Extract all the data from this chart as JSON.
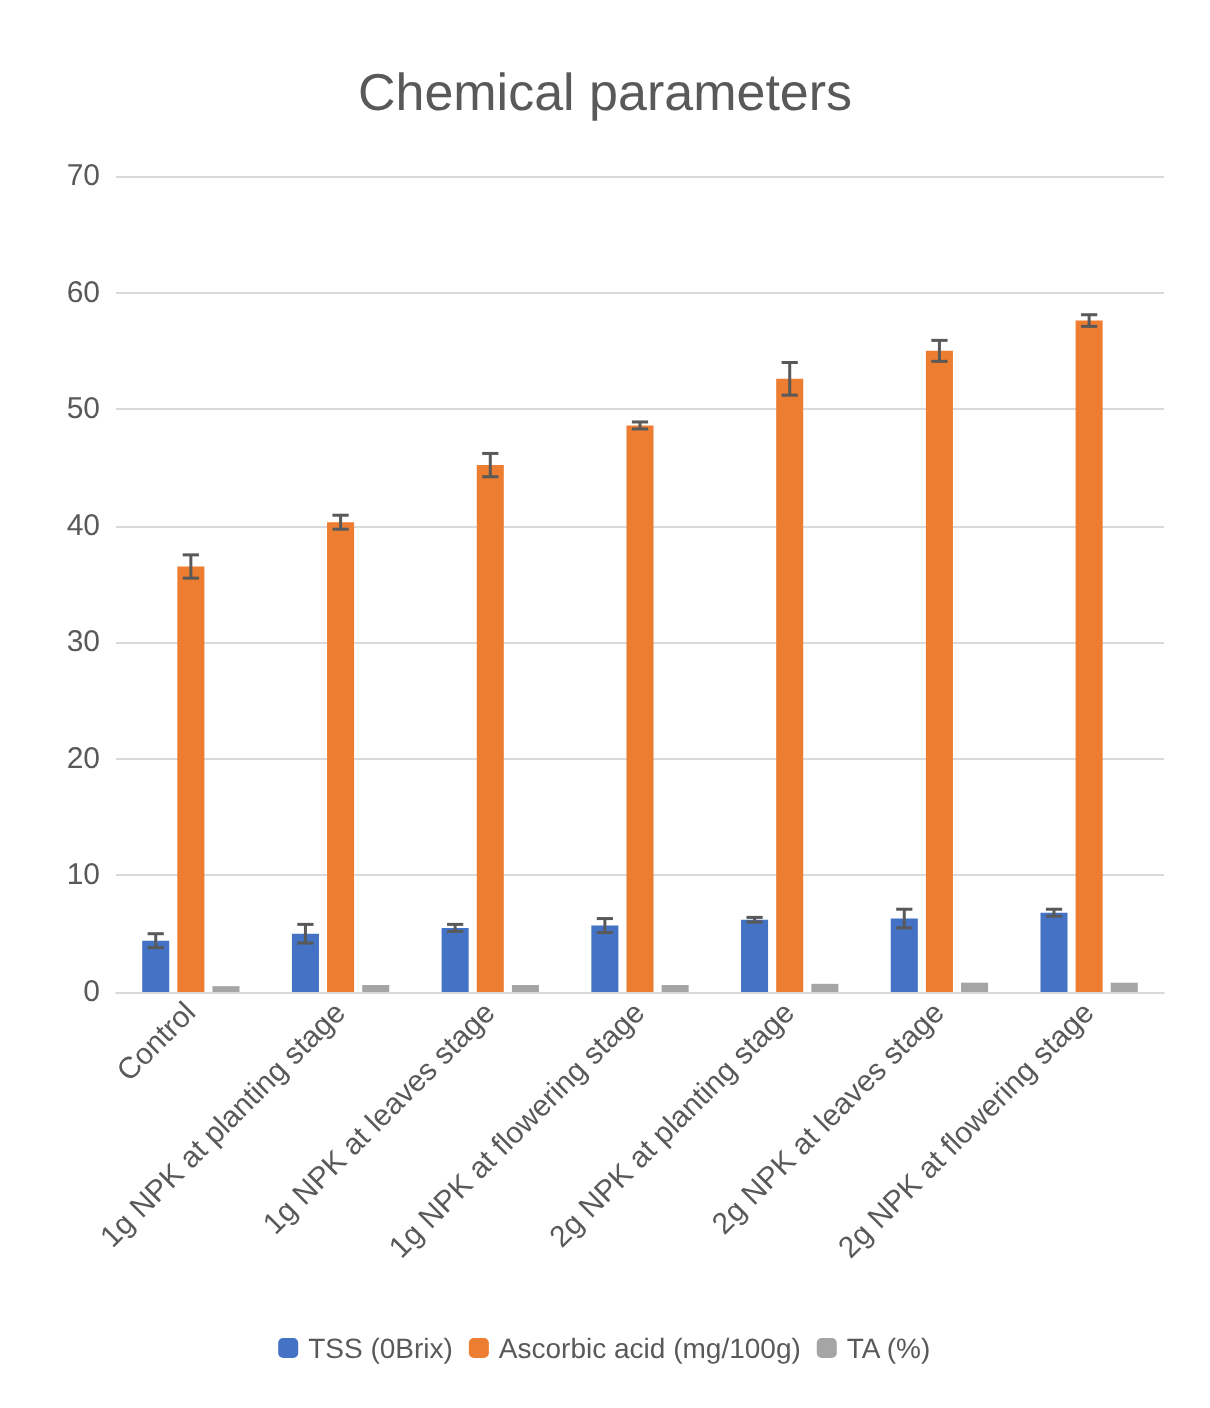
{
  "chart_data": {
    "type": "bar",
    "title": "Chemical parameters",
    "categories": [
      "Control",
      "1g NPK at planting stage",
      "1g NPK at leaves stage",
      "1g NPK at flowering stage",
      "2g NPK at planting stage",
      "2g NPK at leaves stage",
      "2g NPK at flowering stage"
    ],
    "series": [
      {
        "name": "TSS (0Brix)",
        "color": "#4472c4",
        "values": [
          4.4,
          5.0,
          5.5,
          5.7,
          6.2,
          6.3,
          6.8
        ],
        "errors": [
          0.6,
          0.8,
          0.3,
          0.6,
          0.2,
          0.8,
          0.3
        ]
      },
      {
        "name": "Ascorbic acid (mg/100g)",
        "color": "#ed7d31",
        "values": [
          36.5,
          40.3,
          45.2,
          48.6,
          52.6,
          55.0,
          57.6
        ],
        "errors": [
          1.0,
          0.6,
          1.0,
          0.3,
          1.4,
          0.9,
          0.5
        ]
      },
      {
        "name": "TA (%)",
        "color": "#a5a5a5",
        "values": [
          0.5,
          0.6,
          0.6,
          0.6,
          0.7,
          0.8,
          0.8
        ]
      }
    ],
    "ylim": [
      0,
      70
    ],
    "yticks": [
      0,
      10,
      20,
      30,
      40,
      50,
      60,
      70
    ],
    "grid": "y",
    "legend": "bottom"
  }
}
